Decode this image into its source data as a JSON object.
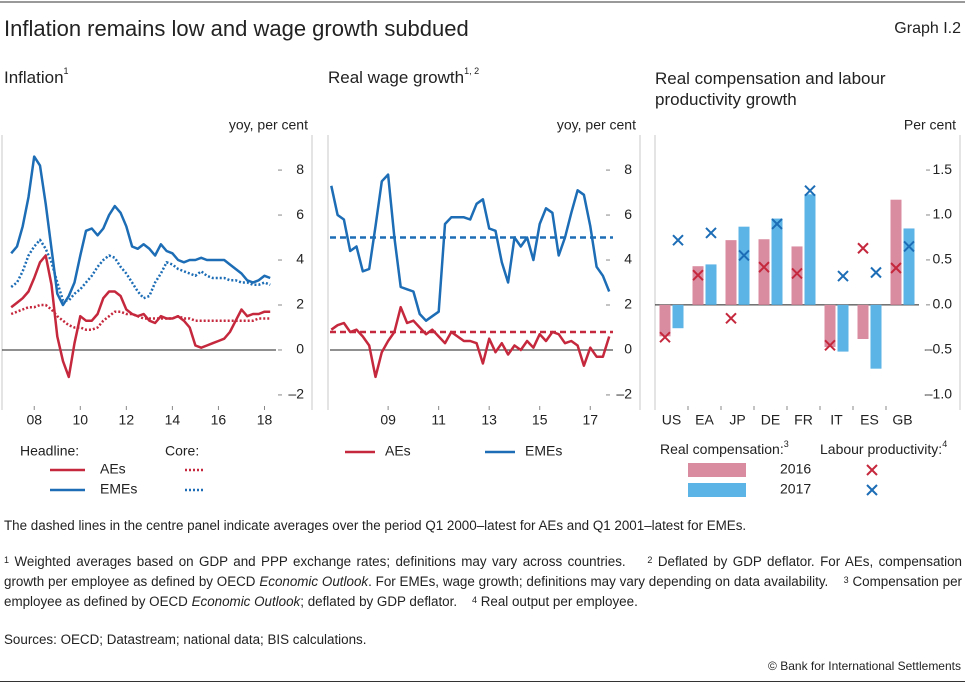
{
  "title": "Inflation remains low and wage growth subdued",
  "graph_label": "Graph I.2",
  "chart_data": [
    {
      "type": "line",
      "title": "Inflation",
      "title_note": "1",
      "y_axis_label": "yoy, per cent",
      "xlim": [
        2006.6,
        2018.5
      ],
      "ylim": [
        -2.67,
        9.56
      ],
      "xticks": [
        {
          "value": 2008,
          "label": "08"
        },
        {
          "value": 2010,
          "label": "10"
        },
        {
          "value": 2012,
          "label": "12"
        },
        {
          "value": 2014,
          "label": "14"
        },
        {
          "value": 2016,
          "label": "16"
        },
        {
          "value": 2018,
          "label": "18"
        }
      ],
      "yticks": [
        8,
        6,
        4,
        2,
        0,
        {
          "value": -2,
          "label": "–2"
        }
      ],
      "grid": false,
      "zero_line": true,
      "x": [
        2007,
        2007.25,
        2007.5,
        2007.75,
        2008,
        2008.25,
        2008.5,
        2008.75,
        2009,
        2009.25,
        2009.5,
        2009.75,
        2010,
        2010.25,
        2010.5,
        2010.75,
        2011,
        2011.25,
        2011.5,
        2011.75,
        2012,
        2012.25,
        2012.5,
        2012.75,
        2013,
        2013.25,
        2013.5,
        2013.75,
        2014,
        2014.25,
        2014.5,
        2014.75,
        2015,
        2015.25,
        2015.5,
        2015.75,
        2016,
        2016.25,
        2016.5,
        2016.75,
        2017,
        2017.25,
        2017.5,
        2017.75,
        2018,
        2018.25
      ],
      "series": [
        {
          "name": "AEs",
          "group": "Headline:",
          "color": "#c5283d",
          "dash": "solid",
          "values": [
            1.9,
            2.1,
            2.3,
            2.6,
            3.2,
            3.9,
            4.2,
            2.9,
            0.6,
            -0.5,
            -1.2,
            0.3,
            1.5,
            1.3,
            1.3,
            1.6,
            2.3,
            2.6,
            2.6,
            2.4,
            1.8,
            1.6,
            1.5,
            1.6,
            1.3,
            1.2,
            1.5,
            1.4,
            1.4,
            1.5,
            1.3,
            1.0,
            0.2,
            0.1,
            0.2,
            0.3,
            0.4,
            0.5,
            0.8,
            1.3,
            1.8,
            1.5,
            1.6,
            1.6,
            1.7,
            1.7
          ]
        },
        {
          "name": "EMEs",
          "group": "Headline:",
          "color": "#1c6db5",
          "dash": "solid",
          "values": [
            4.3,
            4.6,
            5.5,
            6.8,
            8.6,
            8.2,
            6.5,
            4.5,
            2.5,
            2.0,
            2.4,
            3.0,
            4.2,
            5.3,
            5.4,
            5.1,
            5.4,
            6.0,
            6.4,
            6.1,
            5.5,
            4.6,
            4.5,
            4.7,
            4.5,
            4.2,
            4.7,
            4.4,
            4.3,
            4.0,
            3.9,
            4.0,
            4.0,
            4.1,
            4.0,
            4.0,
            4.0,
            4.0,
            3.8,
            3.6,
            3.4,
            3.1,
            3.0,
            3.1,
            3.3,
            3.2
          ]
        },
        {
          "name": "AEs",
          "group": "Core:",
          "color": "#c5283d",
          "dash": "dotted",
          "values": [
            1.6,
            1.7,
            1.8,
            1.9,
            1.9,
            2.0,
            2.0,
            1.8,
            1.5,
            1.3,
            1.1,
            1.0,
            1.0,
            0.9,
            0.9,
            1.0,
            1.3,
            1.5,
            1.7,
            1.7,
            1.6,
            1.6,
            1.5,
            1.4,
            1.4,
            1.4,
            1.4,
            1.4,
            1.4,
            1.5,
            1.4,
            1.4,
            1.3,
            1.3,
            1.3,
            1.3,
            1.3,
            1.3,
            1.3,
            1.3,
            1.3,
            1.3,
            1.3,
            1.4,
            1.4,
            1.4
          ]
        },
        {
          "name": "EMEs",
          "group": "Core:",
          "color": "#1c6db5",
          "dash": "dotted",
          "values": [
            2.8,
            3.0,
            3.5,
            4.2,
            4.6,
            4.9,
            4.5,
            3.9,
            3.0,
            2.2,
            2.2,
            2.5,
            2.7,
            3.0,
            3.3,
            3.7,
            4.0,
            4.2,
            4.1,
            3.7,
            3.4,
            3.0,
            2.6,
            2.3,
            2.4,
            3.0,
            3.4,
            3.9,
            3.8,
            3.6,
            3.5,
            3.4,
            3.3,
            3.5,
            3.3,
            3.2,
            3.2,
            3.2,
            3.1,
            3.1,
            3.0,
            3.0,
            2.9,
            2.9,
            3.0,
            2.9
          ]
        }
      ]
    },
    {
      "type": "line",
      "title": "Real wage growth",
      "title_note": "1, 2",
      "y_axis_label": "yoy, per cent",
      "xlim": [
        2006.7,
        2017.9
      ],
      "ylim": [
        -2.67,
        9.56
      ],
      "xticks": [
        {
          "value": 2009,
          "label": "09"
        },
        {
          "value": 2011,
          "label": "11"
        },
        {
          "value": 2013,
          "label": "13"
        },
        {
          "value": 2015,
          "label": "15"
        },
        {
          "value": 2017,
          "label": "17"
        }
      ],
      "yticks": [
        8,
        6,
        4,
        2,
        0,
        {
          "value": -2,
          "label": "–2"
        }
      ],
      "grid": false,
      "zero_line": true,
      "x": [
        2006.75,
        2007,
        2007.25,
        2007.5,
        2007.75,
        2008,
        2008.25,
        2008.5,
        2008.75,
        2009,
        2009.25,
        2009.5,
        2009.75,
        2010,
        2010.25,
        2010.5,
        2010.75,
        2011,
        2011.25,
        2011.5,
        2011.75,
        2012,
        2012.25,
        2012.5,
        2012.75,
        2013,
        2013.25,
        2013.5,
        2013.75,
        2014,
        2014.25,
        2014.5,
        2014.75,
        2015,
        2015.25,
        2015.5,
        2015.75,
        2016,
        2016.25,
        2016.5,
        2016.75,
        2017,
        2017.25,
        2017.5,
        2017.75
      ],
      "series": [
        {
          "name": "AEs",
          "color": "#c5283d",
          "dash": "solid",
          "values": [
            0.9,
            1.1,
            1.2,
            0.8,
            0.9,
            0.6,
            0.2,
            -1.2,
            -0.1,
            0.4,
            0.8,
            1.9,
            1.2,
            1.3,
            1.0,
            0.7,
            0.9,
            0.6,
            0.3,
            0.8,
            0.6,
            0.4,
            0.4,
            0.3,
            -0.6,
            0.5,
            -0.1,
            0.3,
            -0.2,
            0.2,
            0.0,
            0.4,
            0.1,
            0.7,
            0.4,
            0.8,
            0.7,
            0.3,
            0.4,
            0.2,
            -0.7,
            0.1,
            -0.3,
            -0.3,
            0.6
          ]
        },
        {
          "name": "EMEs",
          "color": "#1c6db5",
          "dash": "solid",
          "values": [
            7.3,
            6.0,
            5.8,
            4.4,
            4.6,
            3.5,
            3.6,
            5.5,
            7.5,
            7.8,
            5.0,
            2.8,
            2.7,
            2.6,
            1.6,
            1.3,
            1.5,
            1.7,
            5.6,
            5.9,
            5.9,
            5.9,
            5.8,
            6.5,
            6.7,
            5.4,
            5.3,
            3.9,
            3.0,
            5.0,
            4.6,
            5.0,
            4.0,
            5.6,
            6.3,
            6.1,
            4.2,
            5.0,
            6.1,
            7.1,
            6.9,
            5.5,
            3.7,
            3.3,
            2.6
          ]
        }
      ],
      "reference_lines": [
        {
          "value": 0.8,
          "color": "#c5283d",
          "dash": "dashed"
        },
        {
          "value": 5.0,
          "color": "#1c6db5",
          "dash": "dashed"
        }
      ]
    },
    {
      "type": "bar",
      "title": "Real compensation and labour productivity growth",
      "y_axis_label": "Per cent",
      "ylim": [
        -1.17,
        1.89
      ],
      "yticks": [
        1.5,
        {
          "value": 1,
          "label": "1.0"
        },
        0.5,
        {
          "value": 0,
          "label": "0.0"
        },
        {
          "value": -0.5,
          "label": "–0.5"
        },
        {
          "value": -1,
          "label": "–1.0"
        }
      ],
      "grid": false,
      "zero_line": true,
      "categories": [
        "US",
        "EA",
        "JP",
        "DE",
        "FR",
        "IT",
        "ES",
        "GB"
      ],
      "legend_titles": [
        {
          "text": "Real compensation:",
          "note": "3"
        },
        {
          "text": "Labour productivity:",
          "note": "4"
        }
      ],
      "series": [
        {
          "name": "2016",
          "color": "#d98ba0",
          "marker_color": "#c5283d",
          "values": [
            -0.35,
            0.43,
            0.72,
            0.73,
            0.65,
            -0.47,
            -0.38,
            1.17
          ],
          "productivity": [
            -0.36,
            0.33,
            -0.15,
            0.42,
            0.35,
            -0.45,
            0.63,
            0.41
          ]
        },
        {
          "name": "2017",
          "color": "#5cb3e6",
          "marker_color": "#1c6db5",
          "values": [
            -0.26,
            0.45,
            0.87,
            0.96,
            1.23,
            -0.52,
            -0.71,
            0.85
          ],
          "productivity": [
            0.72,
            0.8,
            0.55,
            0.9,
            1.27,
            0.32,
            0.36,
            0.65
          ]
        }
      ]
    }
  ],
  "note": "The dashed lines in the centre panel indicate averages over the period Q1 2000–latest for AEs and Q1 2001–latest for EMEs.",
  "footnotes": [
    {
      "marker": "1",
      "text": [
        "Weighted averages based on GDP and PPP exchange rates; definitions may vary across countries."
      ]
    },
    {
      "marker": "2",
      "text": [
        "Deflated by GDP deflator. For AEs, compensation growth per employee as defined by OECD ",
        "Economic Outlook",
        ". For EMEs, wage growth; definitions may vary depending on data availability."
      ]
    },
    {
      "marker": "3",
      "text": [
        "Compensation per employee as defined by OECD ",
        "Economic Outlook",
        "; deflated by GDP deflator."
      ]
    },
    {
      "marker": "4",
      "text": [
        "Real output per employee."
      ]
    }
  ],
  "sources": "Sources: OECD; Datastream; national data; BIS calculations.",
  "copyright": "© Bank for International Settlements"
}
